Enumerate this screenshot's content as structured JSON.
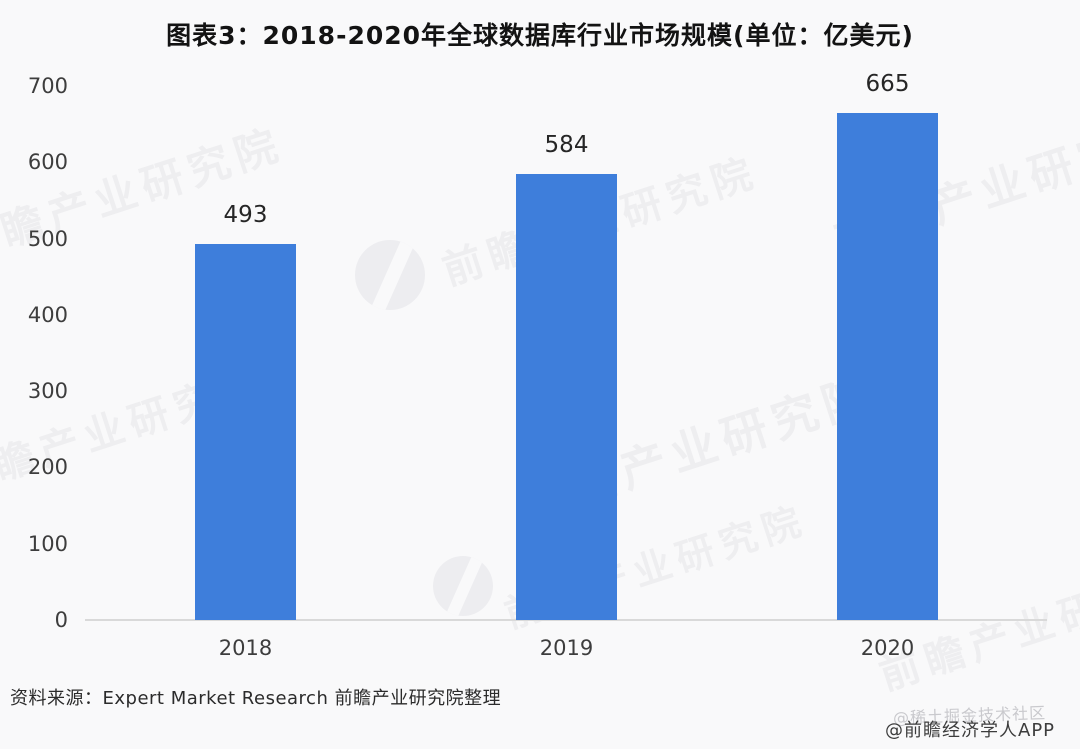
{
  "title": "图表3：2018-2020年全球数据库行业市场规模(单位：亿美元)",
  "source": "资料来源：Expert Market Research 前瞻产业研究院整理",
  "credits": {
    "main": "@前瞻经济学人APP",
    "faint": "@稀土掘金技术社区"
  },
  "watermark": {
    "text": "前瞻产业研究院",
    "logo": "qianzhan-circle-logo"
  },
  "colors": {
    "background": "#f9f9fa",
    "bar": "#3e7edb",
    "axis_line": "#d9d9d9",
    "title_text": "#131313",
    "axis_text": "#3d3d3d",
    "value_text": "#262626",
    "credit_faint": "#c9c9cd"
  },
  "chart_data": {
    "type": "bar",
    "title": "图表3：2018-2020年全球数据库行业市场规模(单位：亿美元)",
    "unit": "亿美元",
    "categories": [
      "2018",
      "2019",
      "2020"
    ],
    "values": [
      493,
      584,
      665
    ],
    "series_name": "全球数据库行业市场规模",
    "xlabel": "",
    "ylabel": "",
    "ylim": [
      0,
      700
    ],
    "yticks": [
      0,
      100,
      200,
      300,
      400,
      500,
      600,
      700
    ],
    "grid": false,
    "legend": false,
    "bar_color": "#3e7edb",
    "value_labels": true
  }
}
